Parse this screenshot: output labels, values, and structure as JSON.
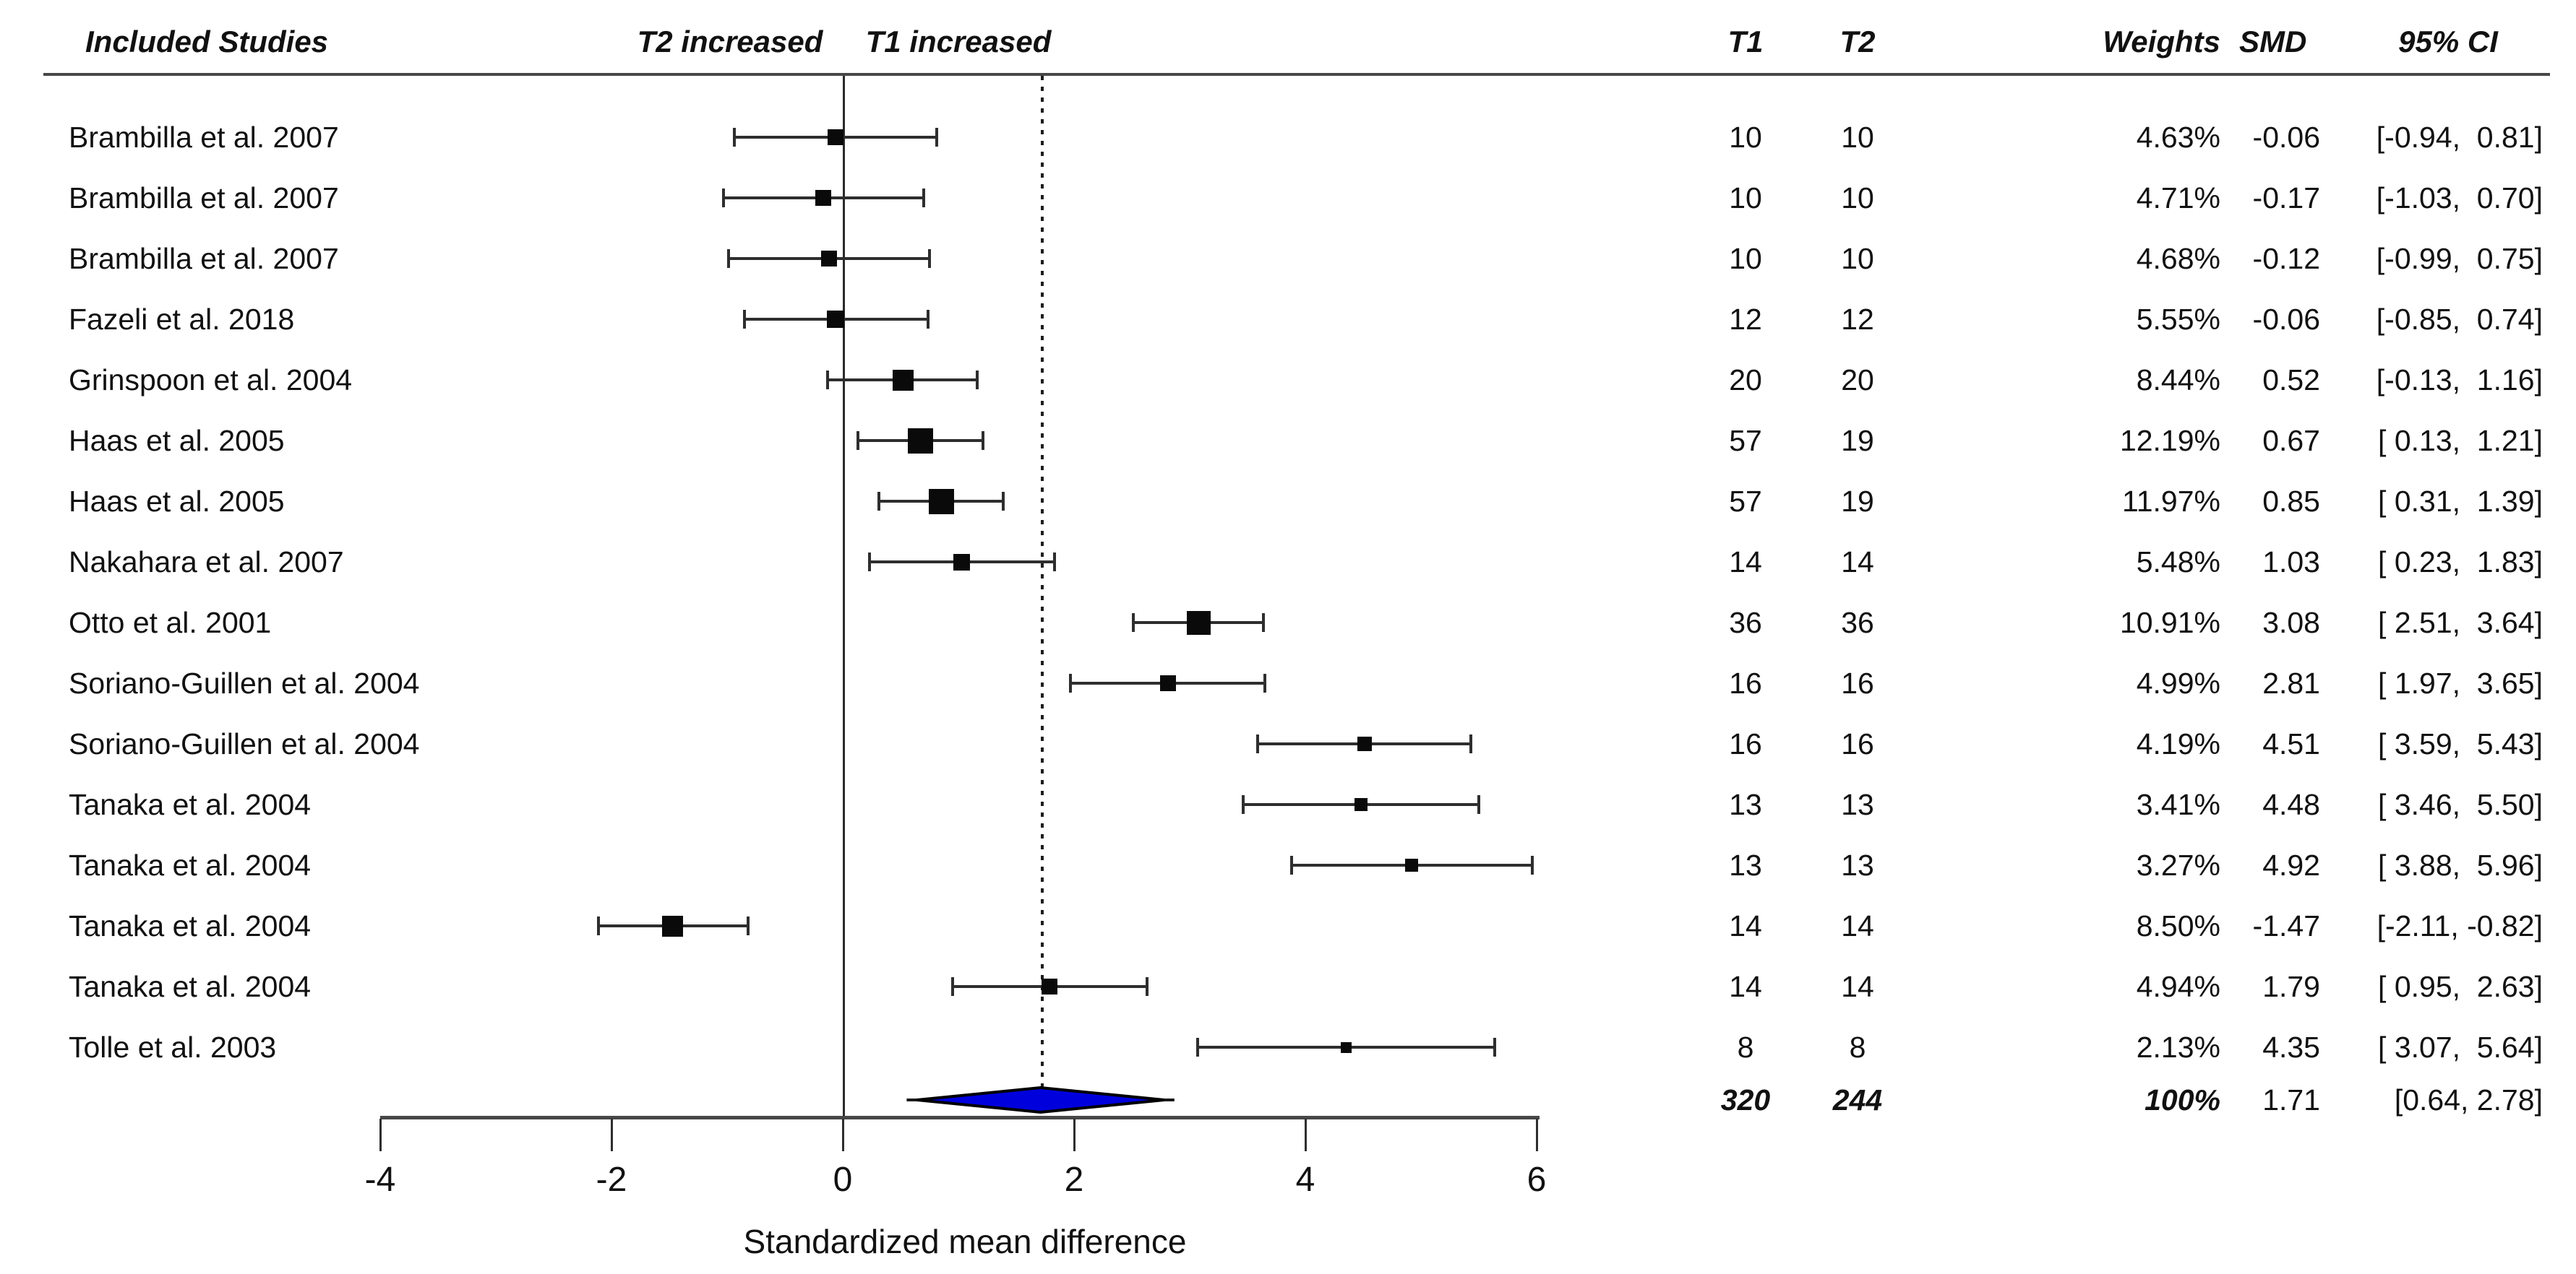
{
  "header": {
    "included_studies": "Included Studies",
    "t2_increased": "T2 increased",
    "t1_increased": "T1 increased",
    "col_t1": "T1",
    "col_t2": "T2",
    "col_weights": "Weights",
    "col_smd": "SMD",
    "col_ci": "95% CI"
  },
  "chart_data": {
    "type": "forest",
    "xlabel": "Standardized mean difference",
    "x_ticks": [
      -4,
      -2,
      0,
      2,
      4,
      6
    ],
    "x_range": [
      -4,
      6
    ],
    "reference_line_x": 0,
    "pooled_line_x": 1.71,
    "marker_color": "#0a0a0a",
    "diamond_fill": "#0000DD",
    "diamond_stroke": "#000000",
    "rows": [
      {
        "study": "Brambilla et al. 2007",
        "t1": "10",
        "t2": "10",
        "weight": "4.63%",
        "weight_val": 4.63,
        "smd": "-0.06",
        "smd_val": -0.06,
        "ci": "[-0.94,  0.81]",
        "ci_low": -0.94,
        "ci_high": 0.81
      },
      {
        "study": "Brambilla et al. 2007",
        "t1": "10",
        "t2": "10",
        "weight": "4.71%",
        "weight_val": 4.71,
        "smd": "-0.17",
        "smd_val": -0.17,
        "ci": "[-1.03,  0.70]",
        "ci_low": -1.03,
        "ci_high": 0.7
      },
      {
        "study": "Brambilla et al. 2007",
        "t1": "10",
        "t2": "10",
        "weight": "4.68%",
        "weight_val": 4.68,
        "smd": "-0.12",
        "smd_val": -0.12,
        "ci": "[-0.99,  0.75]",
        "ci_low": -0.99,
        "ci_high": 0.75
      },
      {
        "study": "Fazeli et al. 2018",
        "t1": "12",
        "t2": "12",
        "weight": "5.55%",
        "weight_val": 5.55,
        "smd": "-0.06",
        "smd_val": -0.06,
        "ci": "[-0.85,  0.74]",
        "ci_low": -0.85,
        "ci_high": 0.74
      },
      {
        "study": "Grinspoon et al. 2004",
        "t1": "20",
        "t2": "20",
        "weight": "8.44%",
        "weight_val": 8.44,
        "smd": "0.52",
        "smd_val": 0.52,
        "ci": "[-0.13,  1.16]",
        "ci_low": -0.13,
        "ci_high": 1.16
      },
      {
        "study": "Haas et al. 2005",
        "t1": "57",
        "t2": "19",
        "weight": "12.19%",
        "weight_val": 12.19,
        "smd": "0.67",
        "smd_val": 0.67,
        "ci": "[ 0.13,  1.21]",
        "ci_low": 0.13,
        "ci_high": 1.21
      },
      {
        "study": "Haas et al. 2005",
        "t1": "57",
        "t2": "19",
        "weight": "11.97%",
        "weight_val": 11.97,
        "smd": "0.85",
        "smd_val": 0.85,
        "ci": "[ 0.31,  1.39]",
        "ci_low": 0.31,
        "ci_high": 1.39
      },
      {
        "study": "Nakahara et al. 2007",
        "t1": "14",
        "t2": "14",
        "weight": "5.48%",
        "weight_val": 5.48,
        "smd": "1.03",
        "smd_val": 1.03,
        "ci": "[ 0.23,  1.83]",
        "ci_low": 0.23,
        "ci_high": 1.83
      },
      {
        "study": "Otto et al. 2001",
        "t1": "36",
        "t2": "36",
        "weight": "10.91%",
        "weight_val": 10.91,
        "smd": "3.08",
        "smd_val": 3.08,
        "ci": "[ 2.51,  3.64]",
        "ci_low": 2.51,
        "ci_high": 3.64
      },
      {
        "study": "Soriano-Guillen et al. 2004",
        "t1": "16",
        "t2": "16",
        "weight": "4.99%",
        "weight_val": 4.99,
        "smd": "2.81",
        "smd_val": 2.81,
        "ci": "[ 1.97,  3.65]",
        "ci_low": 1.97,
        "ci_high": 3.65
      },
      {
        "study": "Soriano-Guillen et al. 2004",
        "t1": "16",
        "t2": "16",
        "weight": "4.19%",
        "weight_val": 4.19,
        "smd": "4.51",
        "smd_val": 4.51,
        "ci": "[ 3.59,  5.43]",
        "ci_low": 3.59,
        "ci_high": 5.43
      },
      {
        "study": "Tanaka et al. 2004",
        "t1": "13",
        "t2": "13",
        "weight": "3.41%",
        "weight_val": 3.41,
        "smd": "4.48",
        "smd_val": 4.48,
        "ci": "[ 3.46,  5.50]",
        "ci_low": 3.46,
        "ci_high": 5.5
      },
      {
        "study": "Tanaka et al. 2004",
        "t1": "13",
        "t2": "13",
        "weight": "3.27%",
        "weight_val": 3.27,
        "smd": "4.92",
        "smd_val": 4.92,
        "ci": "[ 3.88,  5.96]",
        "ci_low": 3.88,
        "ci_high": 5.96
      },
      {
        "study": "Tanaka et al. 2004",
        "t1": "14",
        "t2": "14",
        "weight": "8.50%",
        "weight_val": 8.5,
        "smd": "-1.47",
        "smd_val": -1.47,
        "ci": "[-2.11, -0.82]",
        "ci_low": -2.11,
        "ci_high": -0.82
      },
      {
        "study": "Tanaka et al. 2004",
        "t1": "14",
        "t2": "14",
        "weight": "4.94%",
        "weight_val": 4.94,
        "smd": "1.79",
        "smd_val": 1.79,
        "ci": "[ 0.95,  2.63]",
        "ci_low": 0.95,
        "ci_high": 2.63
      },
      {
        "study": "Tolle et al. 2003",
        "t1": "8",
        "t2": "8",
        "weight": "2.13%",
        "weight_val": 2.13,
        "smd": "4.35",
        "smd_val": 4.35,
        "ci": "[ 3.07,  5.64]",
        "ci_low": 3.07,
        "ci_high": 5.64
      }
    ],
    "summary": {
      "t1": "320",
      "t2": "244",
      "weight": "100%",
      "smd": "1.71",
      "smd_val": 1.71,
      "ci": "[0.64, 2.78]",
      "ci_low": 0.64,
      "ci_high": 2.78
    }
  }
}
